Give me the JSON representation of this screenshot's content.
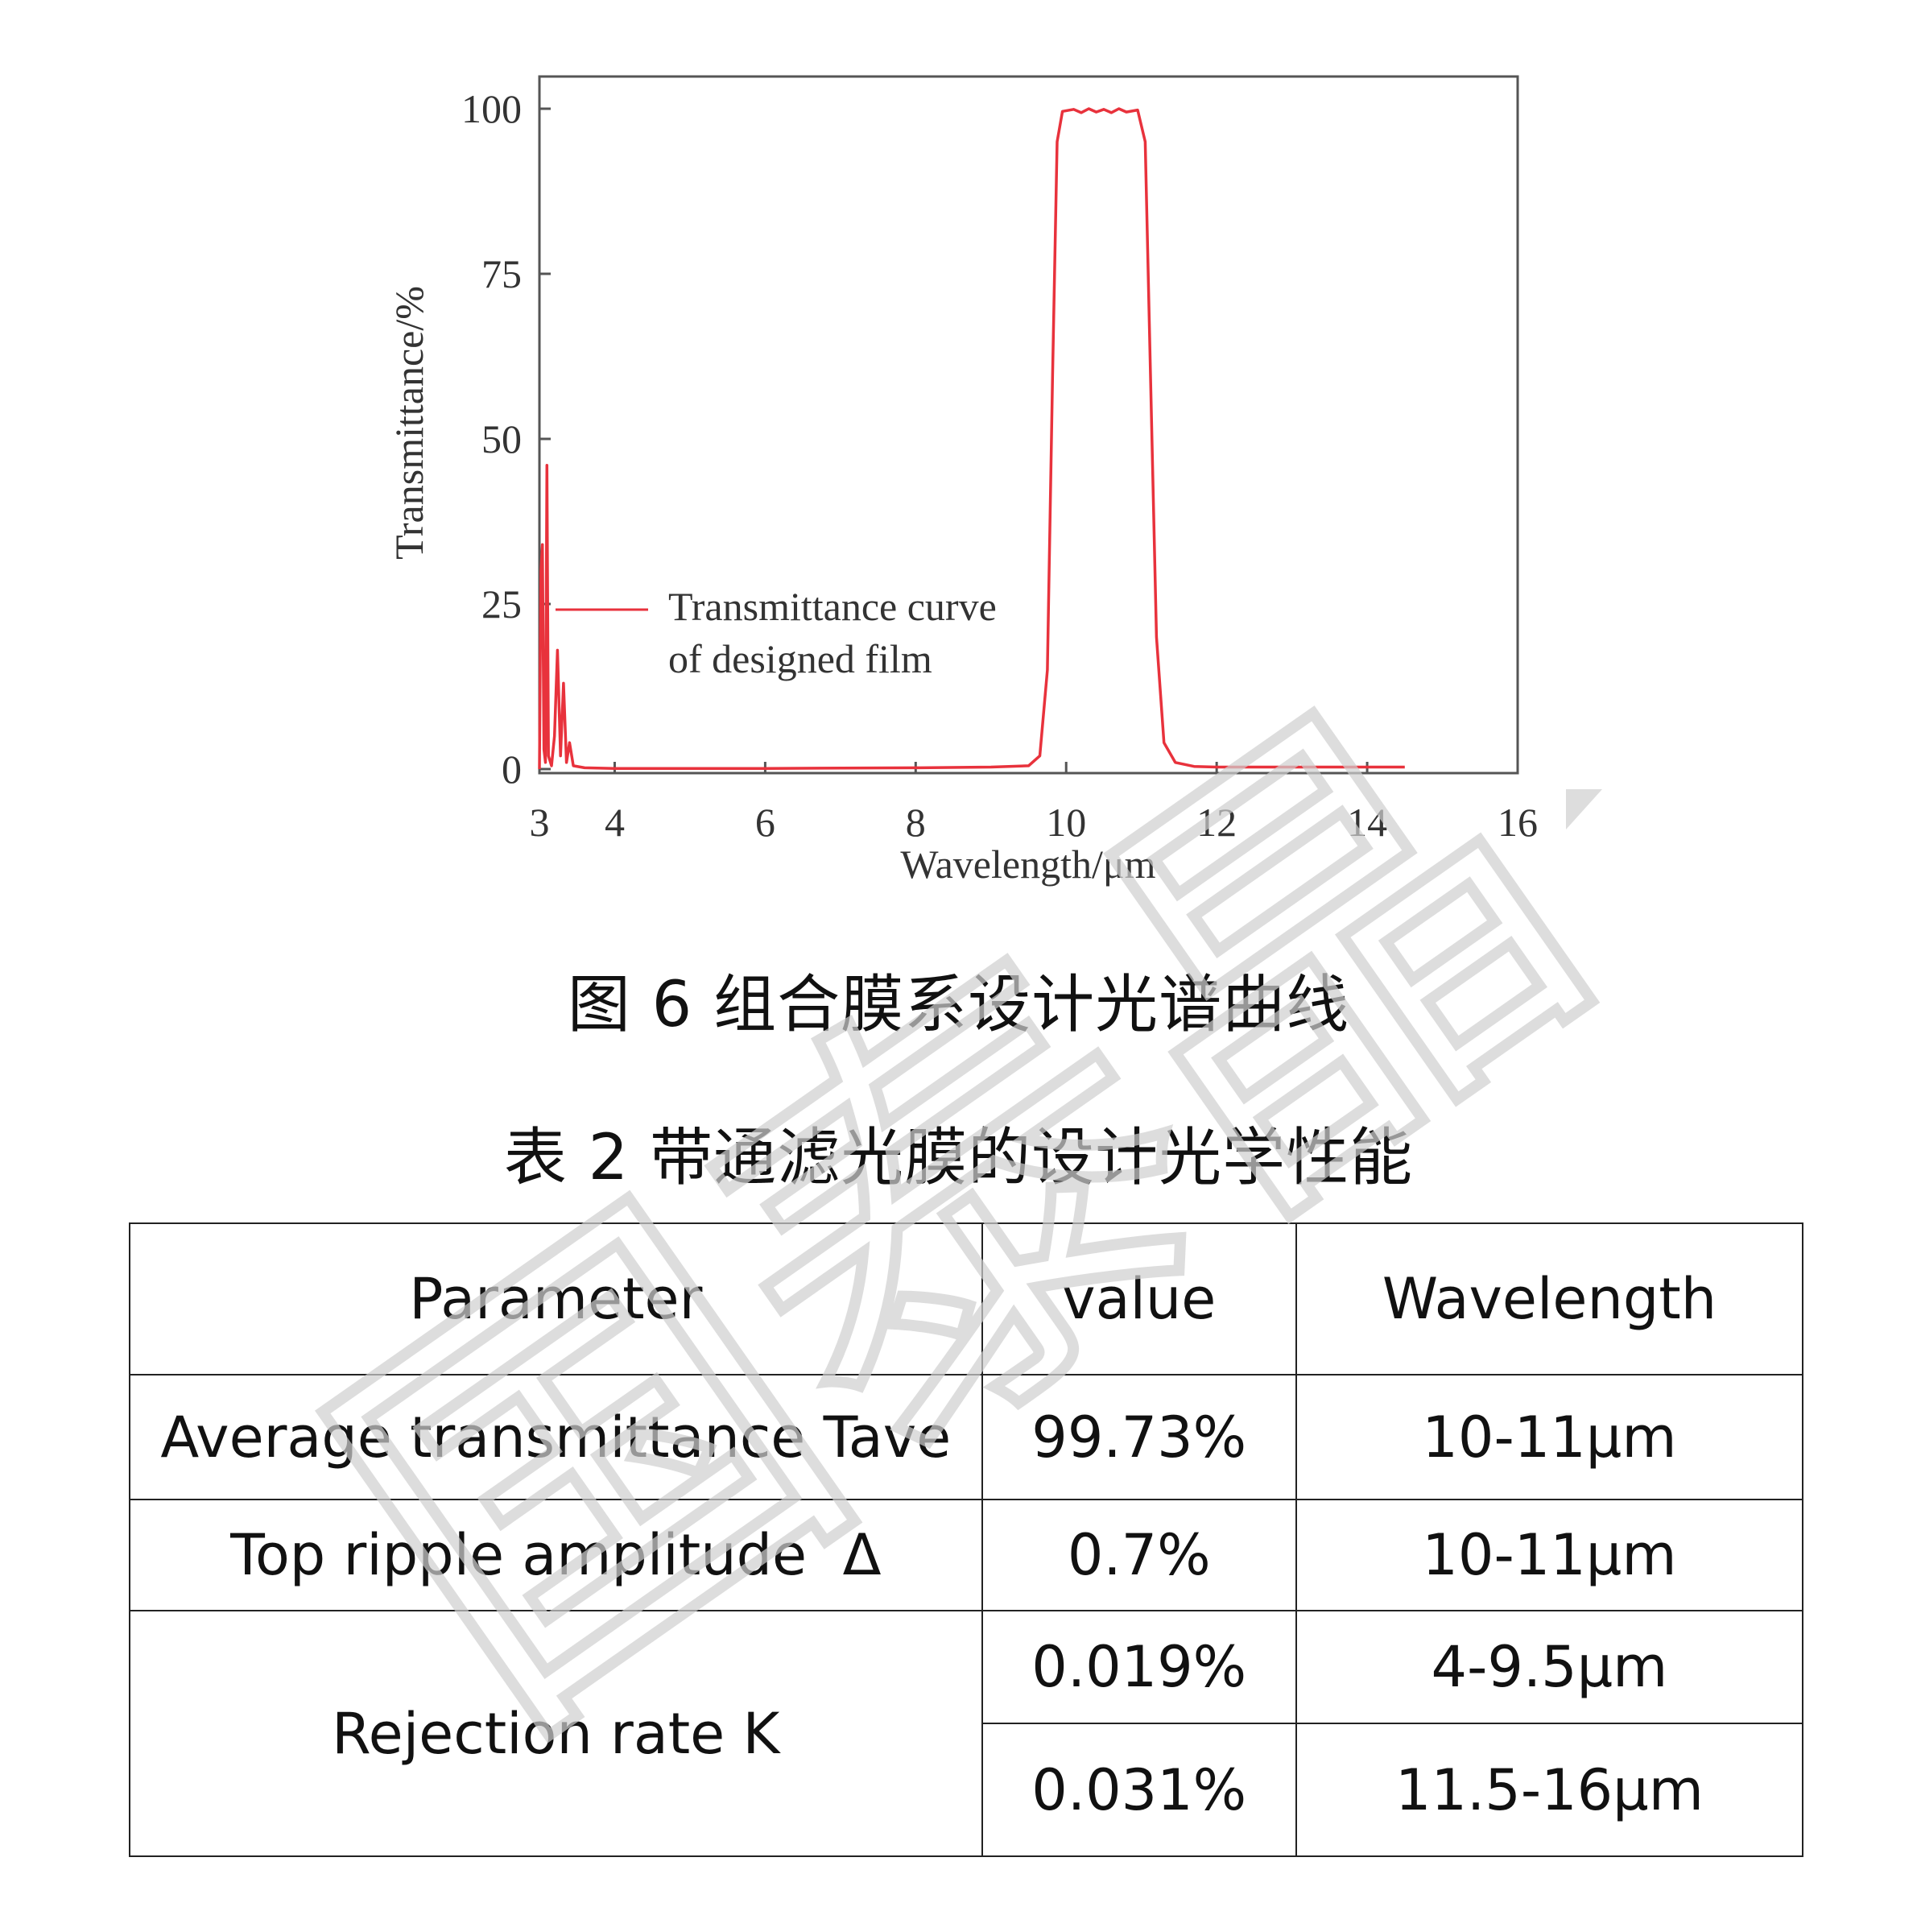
{
  "figure": {
    "caption": "图 6  组合膜系设计光谱曲线"
  },
  "chart_data": {
    "type": "line",
    "xlabel": "Wavelength/μm",
    "ylabel": "Transmittance/%",
    "xlim": [
      3,
      16
    ],
    "ylim": [
      0,
      105
    ],
    "x_ticks": [
      "3",
      "4",
      "6",
      "8",
      "10",
      "12",
      "14",
      "16"
    ],
    "y_ticks": [
      "0",
      "25",
      "50",
      "75",
      "100"
    ],
    "grid": false,
    "legend_position": "center",
    "series": [
      {
        "name": "Transmittance curve of designed film",
        "color": "#e8323c",
        "points": [
          [
            3.0,
            0.0
          ],
          [
            3.02,
            30.0
          ],
          [
            3.04,
            34.0
          ],
          [
            3.06,
            3.0
          ],
          [
            3.08,
            1.0
          ],
          [
            3.1,
            46.0
          ],
          [
            3.12,
            2.0
          ],
          [
            3.16,
            0.5
          ],
          [
            3.2,
            5.0
          ],
          [
            3.24,
            18.0
          ],
          [
            3.28,
            2.0
          ],
          [
            3.32,
            13.0
          ],
          [
            3.36,
            1.0
          ],
          [
            3.4,
            4.0
          ],
          [
            3.45,
            0.5
          ],
          [
            3.6,
            0.2
          ],
          [
            4.0,
            0.1
          ],
          [
            6.0,
            0.1
          ],
          [
            8.0,
            0.2
          ],
          [
            9.0,
            0.3
          ],
          [
            9.5,
            0.5
          ],
          [
            9.65,
            2.0
          ],
          [
            9.75,
            15.0
          ],
          [
            9.82,
            60.0
          ],
          [
            9.88,
            95.0
          ],
          [
            9.95,
            99.6
          ],
          [
            10.1,
            99.9
          ],
          [
            10.2,
            99.4
          ],
          [
            10.3,
            100.0
          ],
          [
            10.4,
            99.5
          ],
          [
            10.5,
            99.9
          ],
          [
            10.6,
            99.4
          ],
          [
            10.7,
            100.0
          ],
          [
            10.8,
            99.5
          ],
          [
            10.95,
            99.8
          ],
          [
            11.05,
            95.0
          ],
          [
            11.12,
            60.0
          ],
          [
            11.2,
            20.0
          ],
          [
            11.3,
            4.0
          ],
          [
            11.45,
            1.0
          ],
          [
            11.7,
            0.4
          ],
          [
            12.0,
            0.3
          ],
          [
            13.0,
            0.3
          ],
          [
            14.0,
            0.3
          ],
          [
            14.5,
            0.3
          ]
        ]
      }
    ]
  },
  "table": {
    "caption": "表 2  带通滤光膜的设计光学性能",
    "headers": [
      "Parameter",
      "value",
      "Wavelength"
    ],
    "rows": [
      {
        "parameter": "Average transmittance Tave",
        "value": "99.73%",
        "wavelength": "10-11μm"
      },
      {
        "parameter": "Top ripple amplitude  Δ",
        "value": "0.7%",
        "wavelength": "10-11μm"
      },
      {
        "parameter": "Rejection rate K",
        "value": "0.019%",
        "wavelength": "4-9.5μm"
      },
      {
        "parameter": "Rejection rate K",
        "value": "0.031%",
        "wavelength": "11.5-16μm"
      }
    ]
  },
  "watermark": {
    "text": "国泰晶",
    "color": "#d0d0d0"
  }
}
